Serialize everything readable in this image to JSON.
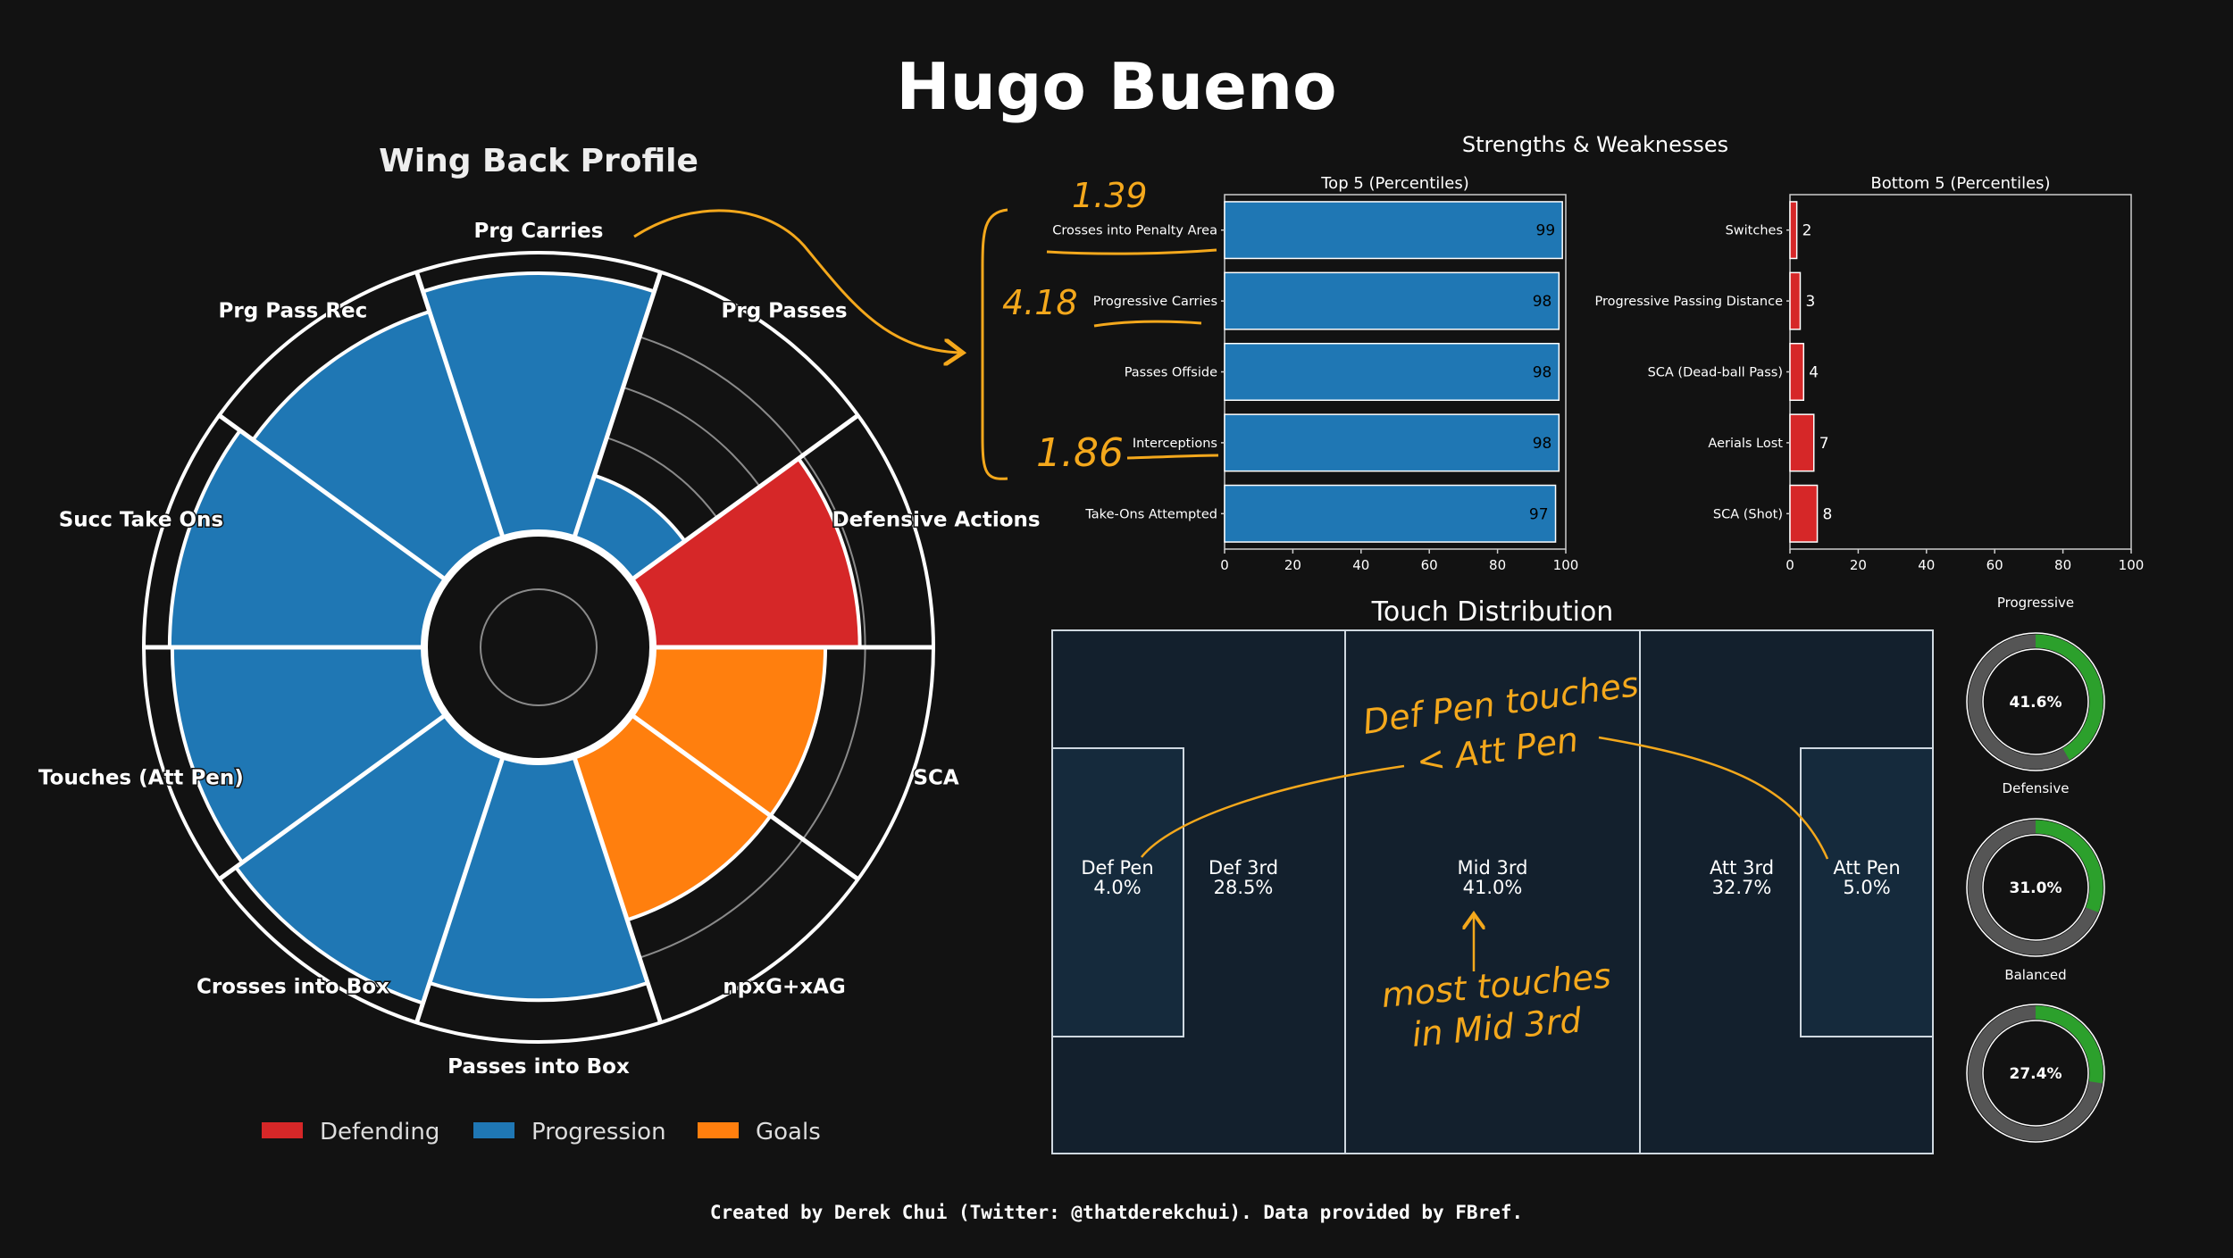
{
  "title": "Hugo Bueno",
  "footer": "Created by Derek Chui (Twitter: @thatderekchui). Data provided by FBref.",
  "colors": {
    "background": "#121212",
    "defending": "#d62728",
    "progression": "#1f77b4",
    "goals": "#ff7f0e",
    "annotation": "#f4a81c",
    "pitch": "#13202d",
    "donut_fill": "#2ca02c",
    "donut_track": "#555555"
  },
  "annotations": {
    "val_1": "1.39",
    "val_2": "4.18",
    "val_3": "1.86",
    "pen_note_1": "Def Pen touches",
    "pen_note_2": "< Att Pen",
    "mid_note_1": "most touches",
    "mid_note_2": "in Mid 3rd"
  },
  "chart_data": [
    {
      "type": "radar",
      "title": "Wing Back Profile",
      "rmax": 100,
      "categories": [
        "Prg Carries",
        "Prg Passes",
        "Defensive Actions",
        "SCA",
        "npxG+xAG",
        "Passes into Box",
        "Crosses into Box",
        "Touches (Att Pen)",
        "Succ Take Ons",
        "Prg Pass Rec"
      ],
      "values": [
        98,
        25,
        78,
        65,
        65,
        90,
        98,
        95,
        96,
        90
      ],
      "groups": [
        "Progression",
        "Progression",
        "Defending",
        "Goals",
        "Goals",
        "Progression",
        "Progression",
        "Progression",
        "Progression",
        "Progression"
      ],
      "legend": [
        "Defending",
        "Progression",
        "Goals"
      ]
    },
    {
      "type": "bar",
      "orientation": "horizontal",
      "suptitle": "Strengths & Weaknesses",
      "title": "Top 5 (Percentiles)",
      "categories": [
        "Crosses into Penalty Area",
        "Progressive Carries",
        "Passes Offside",
        "Interceptions",
        "Take-Ons Attempted"
      ],
      "values": [
        99,
        98,
        98,
        98,
        97
      ],
      "xlim": [
        0,
        100
      ],
      "xticks": [
        "0",
        "20",
        "40",
        "60",
        "80",
        "100"
      ]
    },
    {
      "type": "bar",
      "orientation": "horizontal",
      "title": "Bottom 5 (Percentiles)",
      "categories": [
        "Switches",
        "Progressive Passing Distance",
        "SCA (Dead-ball Pass)",
        "Aerials Lost",
        "SCA (Shot)"
      ],
      "values": [
        2,
        3,
        4,
        7,
        8
      ],
      "xlim": [
        0,
        100
      ],
      "xticks": [
        "0",
        "20",
        "40",
        "60",
        "80",
        "100"
      ]
    },
    {
      "type": "table",
      "title": "Touch Distribution",
      "zones": [
        {
          "name": "Def Pen",
          "value": "4.0%"
        },
        {
          "name": "Def 3rd",
          "value": "28.5%"
        },
        {
          "name": "Mid 3rd",
          "value": "41.0%"
        },
        {
          "name": "Att 3rd",
          "value": "32.7%"
        },
        {
          "name": "Att Pen",
          "value": "5.0%"
        }
      ]
    },
    {
      "type": "pie",
      "style": "donut",
      "donuts": [
        {
          "name": "Progressive",
          "value": 41.6,
          "label": "41.6%"
        },
        {
          "name": "Defensive",
          "value": 31.0,
          "label": "31.0%"
        },
        {
          "name": "Balanced",
          "value": 27.4,
          "label": "27.4%"
        }
      ]
    }
  ]
}
